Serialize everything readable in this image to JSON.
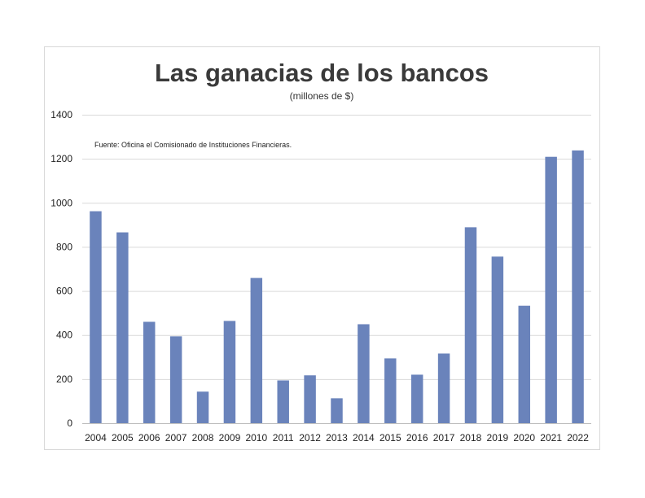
{
  "chart_data": {
    "type": "bar",
    "title": "Las ganacias de los bancos",
    "subtitle": "(millones de $)",
    "annotation": "Fuente: Oficina el Comisionado de Instituciones Financieras.",
    "categories": [
      "2004",
      "2005",
      "2006",
      "2007",
      "2008",
      "2009",
      "2010",
      "2011",
      "2012",
      "2013",
      "2014",
      "2015",
      "2016",
      "2017",
      "2018",
      "2019",
      "2020",
      "2021",
      "2022"
    ],
    "values": [
      962,
      866,
      460,
      394,
      143,
      464,
      659,
      194,
      217,
      113,
      449,
      294,
      220,
      316,
      889,
      756,
      533,
      1209,
      1238
    ],
    "ylim": [
      0,
      1400
    ],
    "yticks": [
      "0",
      "200",
      "400",
      "600",
      "800",
      "1000",
      "1200",
      "1400"
    ],
    "grid": true,
    "legend": "none",
    "bar_color": "#6a83bb"
  }
}
